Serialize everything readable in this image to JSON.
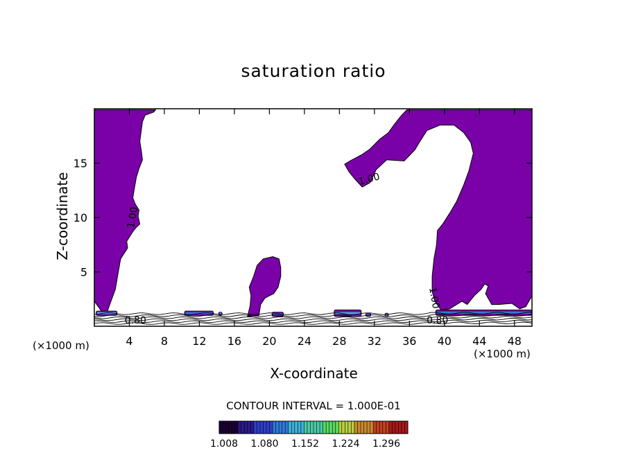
{
  "chart_data": {
    "type": "contour",
    "title": "saturation ratio",
    "xlabel": "X-coordinate",
    "ylabel": "Z-coordinate",
    "x_unit": "(×1000 m)",
    "y_unit": "(×1000 m)",
    "xlim": [
      0,
      50
    ],
    "ylim": [
      0,
      20
    ],
    "x_ticks": [
      4,
      8,
      12,
      16,
      20,
      24,
      28,
      32,
      36,
      40,
      44,
      48
    ],
    "y_ticks": [
      5,
      10,
      15
    ],
    "contour_interval_text": "CONTOUR INTERVAL = 1.000E-01",
    "contour_labels": [
      {
        "text": "1.00",
        "x": 4.4,
        "z": 10.0,
        "angle": -80
      },
      {
        "text": "1.00",
        "x": 31.4,
        "z": 13.5,
        "angle": -15
      },
      {
        "text": "1.00",
        "x": 38.8,
        "z": 2.6,
        "angle": 80
      },
      {
        "text": "0.80",
        "x": 4.7,
        "z": 0.5,
        "angle": 0
      },
      {
        "text": "0.80",
        "x": 39.2,
        "z": 0.5,
        "angle": 0
      }
    ],
    "colorbar": {
      "ticks": [
        "1.008",
        "1.080",
        "1.152",
        "1.224",
        "1.296"
      ],
      "colors": [
        "#1a0033",
        "#2a1a88",
        "#2e3fc8",
        "#2f7ad8",
        "#3fb0d8",
        "#4cc8a8",
        "#5ad860",
        "#b8d040",
        "#c88830",
        "#c04020",
        "#a81818"
      ]
    },
    "fill_color": "#7a00a8",
    "regions": [
      {
        "name": "left-cloud",
        "polygon": [
          [
            0,
            19.9
          ],
          [
            7,
            19.9
          ],
          [
            6.8,
            19.7
          ],
          [
            5.8,
            19.4
          ],
          [
            5.5,
            18.8
          ],
          [
            5.2,
            17
          ],
          [
            5.4,
            16
          ],
          [
            5.5,
            15.3
          ],
          [
            5.1,
            14.5
          ],
          [
            4.8,
            13.7
          ],
          [
            4.6,
            12.8
          ],
          [
            4.4,
            11.8
          ],
          [
            4.7,
            11.2
          ],
          [
            5.1,
            10.7
          ],
          [
            5.0,
            10.1
          ],
          [
            5.2,
            9.4
          ],
          [
            4.8,
            9.1
          ],
          [
            4.4,
            8.7
          ],
          [
            3.7,
            7.8
          ],
          [
            3.8,
            7.2
          ],
          [
            3.0,
            6.2
          ],
          [
            2.7,
            4.8
          ],
          [
            2.4,
            3.4
          ],
          [
            1.9,
            2.3
          ],
          [
            1.5,
            1.4
          ],
          [
            0.8,
            1.4
          ],
          [
            0,
            2.3
          ]
        ]
      },
      {
        "name": "mid-tower",
        "polygon": [
          [
            17.5,
            0.9
          ],
          [
            17.8,
            1.9
          ],
          [
            17.9,
            2.8
          ],
          [
            17.7,
            3.6
          ],
          [
            18.2,
            4.6
          ],
          [
            18.6,
            5.6
          ],
          [
            19.3,
            6.2
          ],
          [
            20.4,
            6.4
          ],
          [
            21.1,
            6.2
          ],
          [
            21.3,
            5.4
          ],
          [
            21.3,
            4.6
          ],
          [
            21.0,
            3.6
          ],
          [
            20.5,
            3.0
          ],
          [
            19.5,
            2.6
          ],
          [
            19.0,
            2.0
          ],
          [
            18.8,
            1.0
          ]
        ]
      },
      {
        "name": "upper-anvil",
        "polygon": [
          [
            28.6,
            14.9
          ],
          [
            29.2,
            15.2
          ],
          [
            30.6,
            15.8
          ],
          [
            31.5,
            16.3
          ],
          [
            32.6,
            17.2
          ],
          [
            33.6,
            17.8
          ],
          [
            34.3,
            18.6
          ],
          [
            35.0,
            19.3
          ],
          [
            35.7,
            19.9
          ],
          [
            50,
            19.9
          ],
          [
            50,
            2.8
          ],
          [
            49.3,
            1.8
          ],
          [
            48.6,
            1.6
          ],
          [
            47.7,
            2.1
          ],
          [
            46.2,
            2.0
          ],
          [
            45.4,
            2.0
          ],
          [
            44.7,
            3.0
          ],
          [
            45.0,
            3.7
          ],
          [
            44.6,
            3.9
          ],
          [
            44.2,
            3.4
          ],
          [
            43.4,
            2.8
          ],
          [
            42.6,
            2.0
          ],
          [
            42.0,
            2.3
          ],
          [
            41.4,
            2.0
          ],
          [
            40.6,
            1.6
          ],
          [
            39.6,
            1.5
          ],
          [
            38.9,
            2.3
          ],
          [
            38.6,
            3.2
          ],
          [
            38.6,
            4.6
          ],
          [
            38.8,
            6.2
          ],
          [
            39.1,
            7.5
          ],
          [
            39.2,
            8.8
          ],
          [
            39.8,
            9.4
          ],
          [
            40.6,
            10.4
          ],
          [
            41.4,
            11.5
          ],
          [
            42.2,
            13.0
          ],
          [
            42.8,
            14.3
          ],
          [
            43.3,
            15.9
          ],
          [
            43.0,
            16.9
          ],
          [
            42.2,
            17.8
          ],
          [
            41.1,
            18.5
          ],
          [
            39.5,
            18.5
          ],
          [
            38.0,
            18.0
          ],
          [
            37.2,
            17.0
          ],
          [
            36.6,
            16.2
          ],
          [
            35.4,
            15.2
          ],
          [
            33.4,
            15.3
          ],
          [
            32.2,
            14.4
          ],
          [
            31.5,
            13.2
          ],
          [
            30.6,
            12.8
          ],
          [
            29.8,
            13.5
          ],
          [
            29.1,
            14.2
          ]
        ]
      }
    ],
    "low_level_patches": [
      {
        "x0": 0.2,
        "x1": 2.6,
        "z0": 1.0,
        "z1": 1.4
      },
      {
        "x0": 10.3,
        "x1": 13.6,
        "z0": 1.0,
        "z1": 1.4
      },
      {
        "x0": 14.2,
        "x1": 14.6,
        "z0": 1.0,
        "z1": 1.3
      },
      {
        "x0": 20.3,
        "x1": 21.6,
        "z0": 0.9,
        "z1": 1.3
      },
      {
        "x0": 27.4,
        "x1": 30.5,
        "z0": 0.9,
        "z1": 1.5
      },
      {
        "x0": 31.0,
        "x1": 31.6,
        "z0": 0.9,
        "z1": 1.2
      },
      {
        "x0": 33.2,
        "x1": 33.6,
        "z0": 0.9,
        "z1": 1.2
      },
      {
        "x0": 39.0,
        "x1": 50.0,
        "z0": 1.0,
        "z1": 1.5
      }
    ]
  }
}
